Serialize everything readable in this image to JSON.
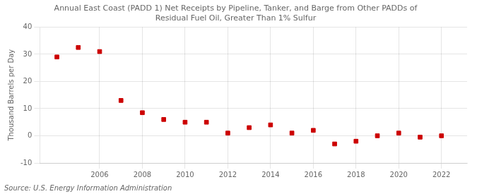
{
  "chart_data": {
    "type": "scatter",
    "title": [
      "Annual East Coast (PADD 1) Net Receipts by Pipeline, Tanker, and Barge from Other PADDs of",
      "Residual Fuel Oil, Greater Than 1% Sulfur"
    ],
    "y_label": "Thousand Barrels per Day",
    "annotations": [
      "Source: U.S. Energy Information Administration"
    ],
    "x": [
      2004,
      2005,
      2006,
      2007,
      2008,
      2009,
      2010,
      2011,
      2012,
      2013,
      2014,
      2015,
      2016,
      2017,
      2018,
      2019,
      2020,
      2021,
      2022
    ],
    "values": [
      29.0,
      32.5,
      31.0,
      13.0,
      8.5,
      6.0,
      5.0,
      5.0,
      1.0,
      3.0,
      4.0,
      1.0,
      2.0,
      -3.0,
      -2.0,
      0.0,
      1.0,
      -0.5,
      0.0
    ],
    "color": "#CC0000",
    "marker": "square",
    "xlim": [
      2003.2,
      2023.2
    ],
    "xticks": [
      2006,
      2008,
      2010,
      2012,
      2014,
      2016,
      2018,
      2020,
      2022
    ],
    "ylim": [
      -10,
      40
    ],
    "yticks": [
      -10,
      0,
      10,
      20,
      30,
      40
    ],
    "grid": true
  }
}
